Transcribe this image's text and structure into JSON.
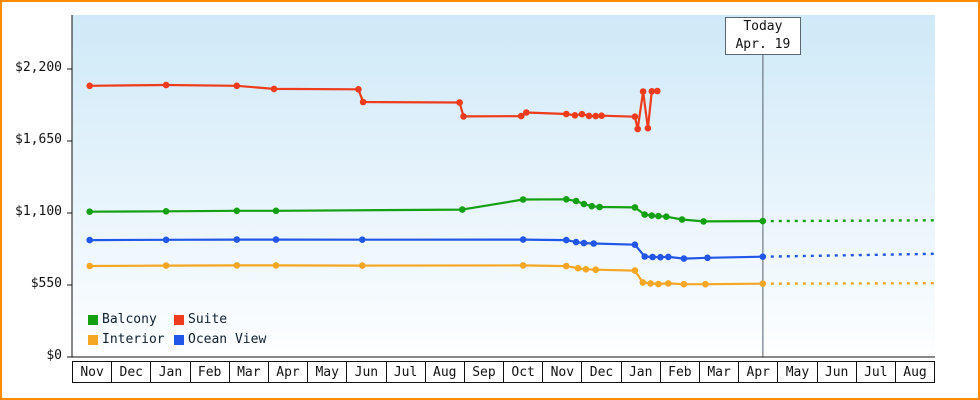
{
  "frame": {
    "border_color": "#ff8c00",
    "background": "#ffffff"
  },
  "chart_data": {
    "type": "line",
    "title": "",
    "legend_position": "bottom-left",
    "grid": false,
    "plot_bg": {
      "top": "#cfe9f8",
      "bottom": "#fdfeff"
    },
    "x_axis": {
      "months": [
        "Nov",
        "Dec",
        "Jan",
        "Feb",
        "Mar",
        "Apr",
        "May",
        "Jun",
        "Jul",
        "Aug",
        "Sep",
        "Oct",
        "Nov",
        "Dec",
        "Jan",
        "Feb",
        "Mar",
        "Apr",
        "May",
        "Jun",
        "Jul",
        "Aug"
      ]
    },
    "y_axis": {
      "unit": "USD",
      "tick_labels": [
        "$2,200",
        "$1,650",
        "$1,100",
        "$550",
        "$0"
      ],
      "tick_values": [
        2200,
        1650,
        1100,
        550,
        0
      ]
    },
    "ylim": [
      0,
      2200
    ],
    "today": {
      "label_line1": "Today",
      "label_line2": "Apr. 19",
      "month_index": 17,
      "day": 19
    },
    "legend": {
      "items": [
        {
          "label": "Balcony",
          "color": "#13a113"
        },
        {
          "label": "Suite",
          "color": "#ee3b1c"
        },
        {
          "label": "Interior",
          "color": "#f5a623"
        },
        {
          "label": "Ocean View",
          "color": "#2256e8"
        }
      ]
    },
    "series": [
      {
        "name": "Interior",
        "color": "#f5a623",
        "points": [
          [
            0.45,
            695
          ],
          [
            2.4,
            698
          ],
          [
            4.2,
            700
          ],
          [
            5.2,
            700
          ],
          [
            7.4,
            698
          ],
          [
            11.5,
            700
          ],
          [
            12.6,
            694
          ],
          [
            12.9,
            678
          ],
          [
            13.1,
            670
          ],
          [
            13.35,
            667
          ],
          [
            14.35,
            660
          ],
          [
            14.55,
            570
          ],
          [
            14.75,
            562
          ],
          [
            14.95,
            558
          ],
          [
            15.2,
            562
          ],
          [
            15.6,
            556
          ],
          [
            16.15,
            556
          ],
          [
            17.61,
            560
          ]
        ],
        "projection": [
          [
            17.61,
            560
          ],
          [
            22,
            564
          ]
        ]
      },
      {
        "name": "Ocean View",
        "color": "#2256e8",
        "points": [
          [
            0.45,
            893
          ],
          [
            2.4,
            895
          ],
          [
            4.2,
            897
          ],
          [
            5.2,
            897
          ],
          [
            7.4,
            896
          ],
          [
            11.5,
            897
          ],
          [
            12.6,
            893
          ],
          [
            12.85,
            878
          ],
          [
            13.05,
            870
          ],
          [
            13.3,
            867
          ],
          [
            14.35,
            858
          ],
          [
            14.6,
            768
          ],
          [
            14.8,
            764
          ],
          [
            15.0,
            762
          ],
          [
            15.2,
            765
          ],
          [
            15.6,
            752
          ],
          [
            16.2,
            758
          ],
          [
            17.61,
            766
          ]
        ],
        "projection": [
          [
            17.61,
            766
          ],
          [
            22,
            788
          ]
        ]
      },
      {
        "name": "Balcony",
        "color": "#13a113",
        "points": [
          [
            0.45,
            1110
          ],
          [
            2.4,
            1113
          ],
          [
            4.2,
            1117
          ],
          [
            5.2,
            1117
          ],
          [
            9.95,
            1126
          ],
          [
            11.5,
            1203
          ],
          [
            12.6,
            1205
          ],
          [
            12.85,
            1192
          ],
          [
            13.05,
            1168
          ],
          [
            13.25,
            1152
          ],
          [
            13.45,
            1146
          ],
          [
            14.35,
            1143
          ],
          [
            14.6,
            1088
          ],
          [
            14.78,
            1080
          ],
          [
            14.95,
            1076
          ],
          [
            15.15,
            1072
          ],
          [
            15.55,
            1050
          ],
          [
            16.1,
            1036
          ],
          [
            17.61,
            1038
          ]
        ],
        "projection": [
          [
            17.61,
            1038
          ],
          [
            22,
            1044
          ]
        ]
      },
      {
        "name": "Suite",
        "color": "#ee3b1c",
        "points": [
          [
            0.45,
            2072
          ],
          [
            2.4,
            2078
          ],
          [
            4.2,
            2072
          ],
          [
            5.15,
            2048
          ],
          [
            7.3,
            2045
          ],
          [
            7.42,
            1948
          ],
          [
            9.88,
            1944
          ],
          [
            9.98,
            1838
          ],
          [
            11.45,
            1840
          ],
          [
            11.58,
            1868
          ],
          [
            12.6,
            1856
          ],
          [
            12.82,
            1846
          ],
          [
            13.0,
            1855
          ],
          [
            13.18,
            1842
          ],
          [
            13.35,
            1840
          ],
          [
            13.5,
            1843
          ],
          [
            14.35,
            1836
          ],
          [
            14.42,
            1742
          ],
          [
            14.56,
            2028
          ],
          [
            14.68,
            1748
          ],
          [
            14.78,
            2030
          ],
          [
            14.92,
            2032
          ]
        ]
      }
    ]
  }
}
